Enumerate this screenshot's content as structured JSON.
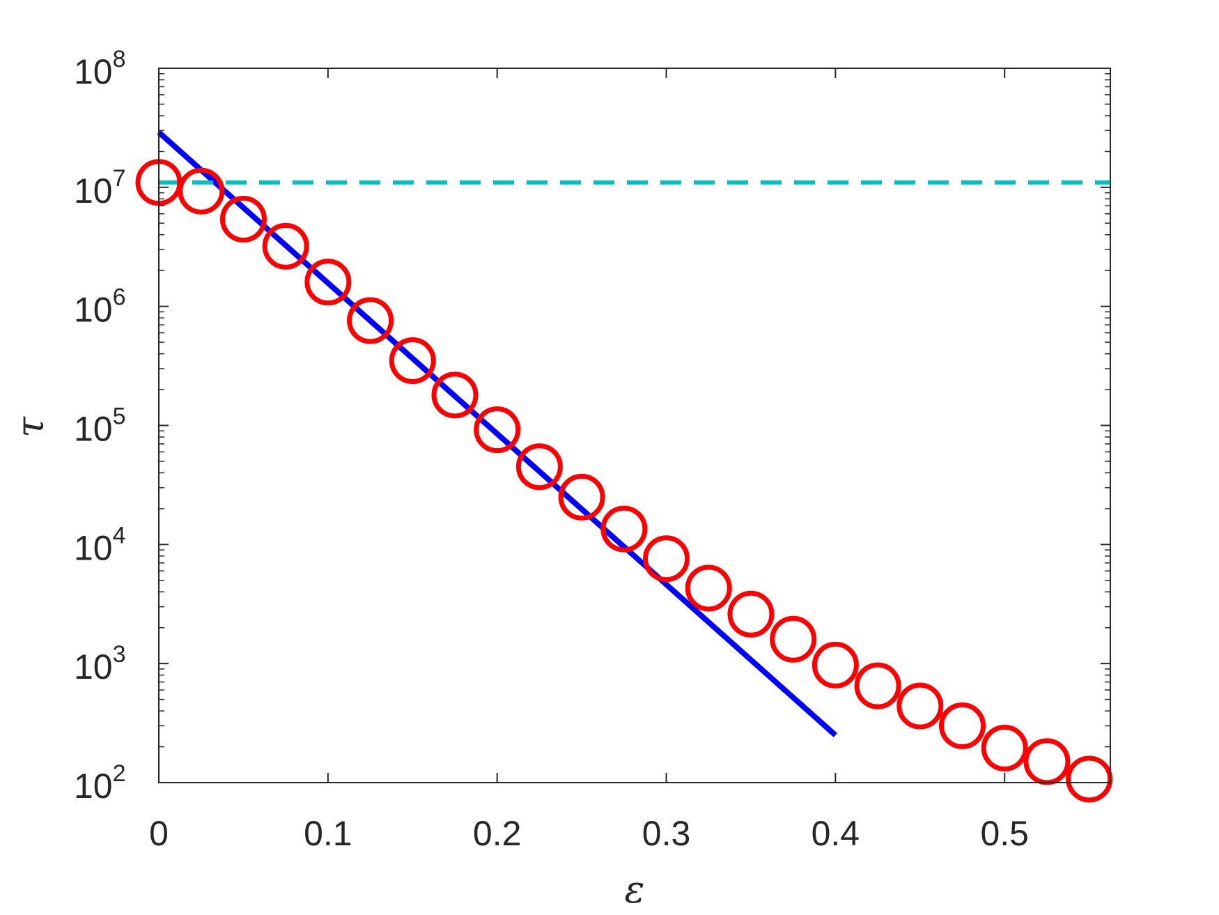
{
  "chart_data": {
    "type": "scatter",
    "xlabel": "ε",
    "ylabel": "τ",
    "xlim": [
      0,
      0.5625
    ],
    "ylim": [
      100,
      100000000
    ],
    "yscale": "log",
    "grid": false,
    "legend": "none",
    "x_ticks": [
      "0",
      "0.1",
      "0.2",
      "0.3",
      "0.4",
      "0.5"
    ],
    "y_ticks": [
      {
        "base": "10",
        "exp": "2"
      },
      {
        "base": "10",
        "exp": "3"
      },
      {
        "base": "10",
        "exp": "4"
      },
      {
        "base": "10",
        "exp": "5"
      },
      {
        "base": "10",
        "exp": "6"
      },
      {
        "base": "10",
        "exp": "7"
      },
      {
        "base": "10",
        "exp": "8"
      }
    ],
    "series": [
      {
        "style": "markers",
        "marker": "open-circle",
        "color": "#ff0000",
        "x": [
          0,
          0.025,
          0.05,
          0.075,
          0.1,
          0.125,
          0.15,
          0.175,
          0.2,
          0.225,
          0.25,
          0.275,
          0.3,
          0.325,
          0.35,
          0.375,
          0.4,
          0.425,
          0.45,
          0.475,
          0.5,
          0.525,
          0.55
        ],
        "y": [
          11000000,
          9300000,
          5400000,
          3200000,
          1600000,
          760000,
          350000,
          180000,
          92000,
          45000,
          25000,
          13500,
          7600,
          4300,
          2600,
          1600,
          970,
          650,
          440,
          300,
          195,
          150,
          107
        ]
      },
      {
        "style": "solid-line",
        "color": "#0000ff",
        "x": [
          0,
          0.4
        ],
        "y": [
          29000000,
          250
        ]
      },
      {
        "style": "dashed-line",
        "color": "#00bfbf",
        "x": [
          0,
          0.5625
        ],
        "y": [
          11000000,
          11000000
        ]
      }
    ]
  }
}
